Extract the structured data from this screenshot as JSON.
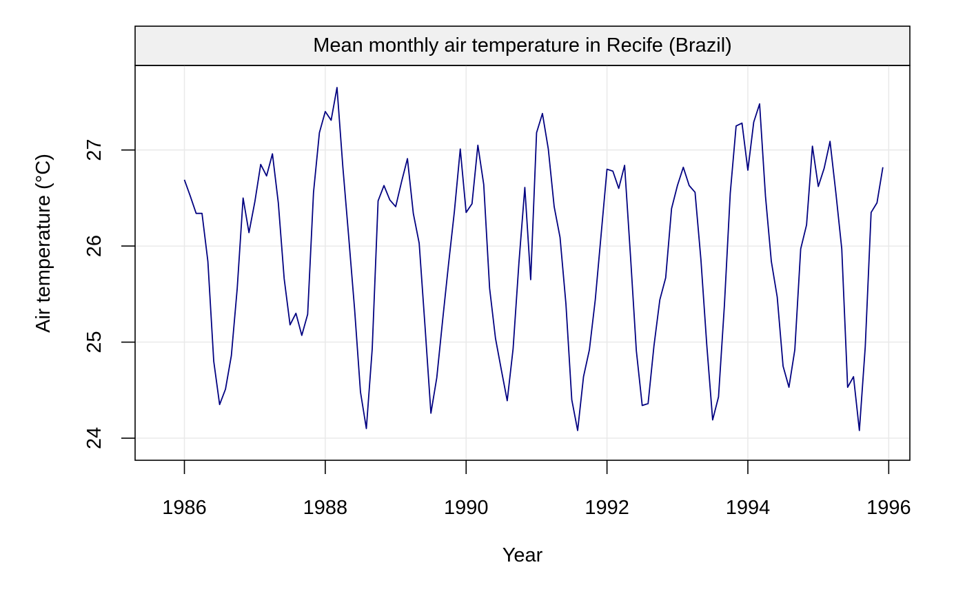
{
  "chart_data": {
    "type": "line",
    "title": "Mean monthly air temperature in Recife (Brazil)",
    "xlabel": "Year",
    "ylabel": "Air temperature (°C)",
    "xlim": [
      1985.3,
      1996.3
    ],
    "ylim": [
      23.77,
      27.88
    ],
    "x_ticks": [
      1986,
      1988,
      1990,
      1992,
      1994,
      1996
    ],
    "x_tick_labels": [
      "1986",
      "1988",
      "1990",
      "1992",
      "1994",
      "1996"
    ],
    "y_ticks": [
      24,
      25,
      26,
      27
    ],
    "y_tick_labels": [
      "24",
      "25",
      "26",
      "27"
    ],
    "grid": true,
    "legend": "none",
    "colors": {
      "line": "#000080",
      "strip": "#f0f0f0",
      "grid": "#e9e9e9",
      "frame": "#000000"
    },
    "series": [
      {
        "x_start": "1986-01",
        "frequency": "monthly",
        "values": [
          26.69,
          26.52,
          26.34,
          26.34,
          25.84,
          24.8,
          24.35,
          24.51,
          24.86,
          25.56,
          26.5,
          26.14,
          26.46,
          26.85,
          26.73,
          26.96,
          26.45,
          25.66,
          25.18,
          25.3,
          25.07,
          25.29,
          26.56,
          27.18,
          27.4,
          27.31,
          27.65,
          26.82,
          26.09,
          25.34,
          24.48,
          24.1,
          24.93,
          26.47,
          26.63,
          26.48,
          26.41,
          26.67,
          26.91,
          26.34,
          26.03,
          25.16,
          24.26,
          24.63,
          25.23,
          25.81,
          26.36,
          27.01,
          26.35,
          26.44,
          27.05,
          26.64,
          25.56,
          25.04,
          24.71,
          24.39,
          24.93,
          25.83,
          26.61,
          25.65,
          27.18,
          27.38,
          27.01,
          26.41,
          26.09,
          25.4,
          24.4,
          24.08,
          24.64,
          24.92,
          25.44,
          26.12,
          26.8,
          26.78,
          26.6,
          26.84,
          25.9,
          24.91,
          24.34,
          24.36,
          24.96,
          25.44,
          25.67,
          26.39,
          26.63,
          26.82,
          26.63,
          26.56,
          25.86,
          24.97,
          24.19,
          24.43,
          25.38,
          26.55,
          27.25,
          27.28,
          26.79,
          27.29,
          27.48,
          26.52,
          25.84,
          25.47,
          24.75,
          24.53,
          24.92,
          25.97,
          26.22,
          27.04,
          26.62,
          26.81,
          27.09,
          26.55,
          25.97,
          24.53,
          24.64,
          24.08,
          24.95,
          26.35,
          26.45,
          26.82
        ]
      }
    ]
  }
}
